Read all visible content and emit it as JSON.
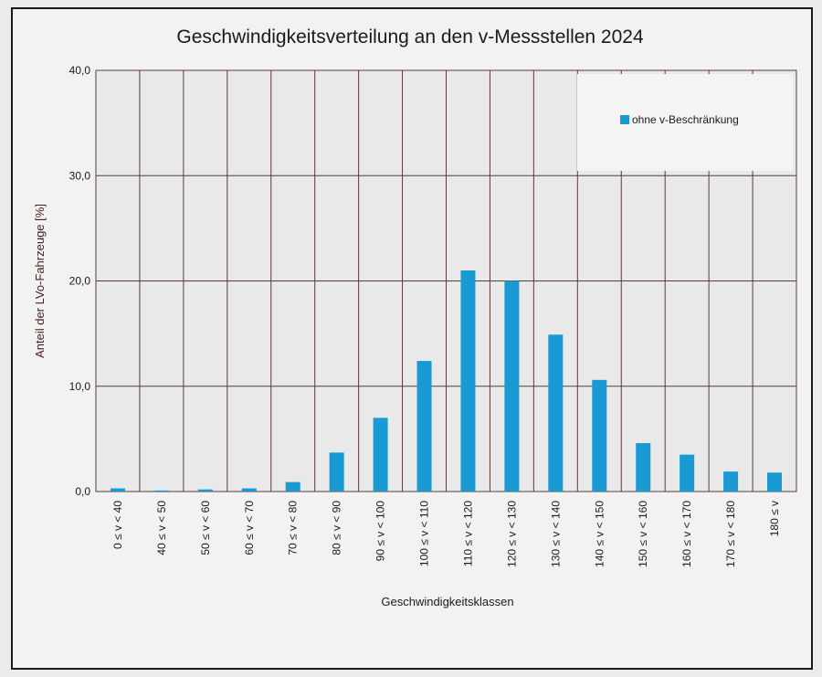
{
  "chart_data": {
    "type": "bar",
    "title": "Geschwindigkeitsverteilung an den v-Messstellen 2024",
    "xlabel": "Geschwindigkeitsklassen",
    "ylabel": "Anteil der LVo-Fahrzeuge [%]",
    "ylim": [
      0,
      40
    ],
    "yticks": [
      "0,0",
      "10,0",
      "20,0",
      "30,0",
      "40,0"
    ],
    "grid": true,
    "legend_position": "top-right",
    "categories": [
      "0 ≤ v < 40",
      "40 ≤ v < 50",
      "50 ≤ v < 60",
      "60 ≤ v < 70",
      "70 ≤ v < 80",
      "80 ≤ v < 90",
      "90 ≤ v < 100",
      "100 ≤ v < 110",
      "110 ≤ v < 120",
      "120 ≤ v < 130",
      "130 ≤ v < 140",
      "140 ≤ v < 150",
      "150 ≤ v < 160",
      "160 ≤ v < 170",
      "170 ≤ v < 180",
      "180 ≤ v"
    ],
    "series": [
      {
        "name": "ohne v-Beschränkung",
        "color": "#1a9ad2",
        "values": [
          0.3,
          0.1,
          0.2,
          0.3,
          0.9,
          3.7,
          7.0,
          12.4,
          21.0,
          20.0,
          14.9,
          10.6,
          4.6,
          3.5,
          1.9,
          1.8
        ]
      }
    ],
    "colors": {
      "grid": "#5a3a3a",
      "text": "#1a1a1a",
      "axis_title": "#4a1a1a",
      "plot_bg": "#e9e9e9"
    }
  }
}
